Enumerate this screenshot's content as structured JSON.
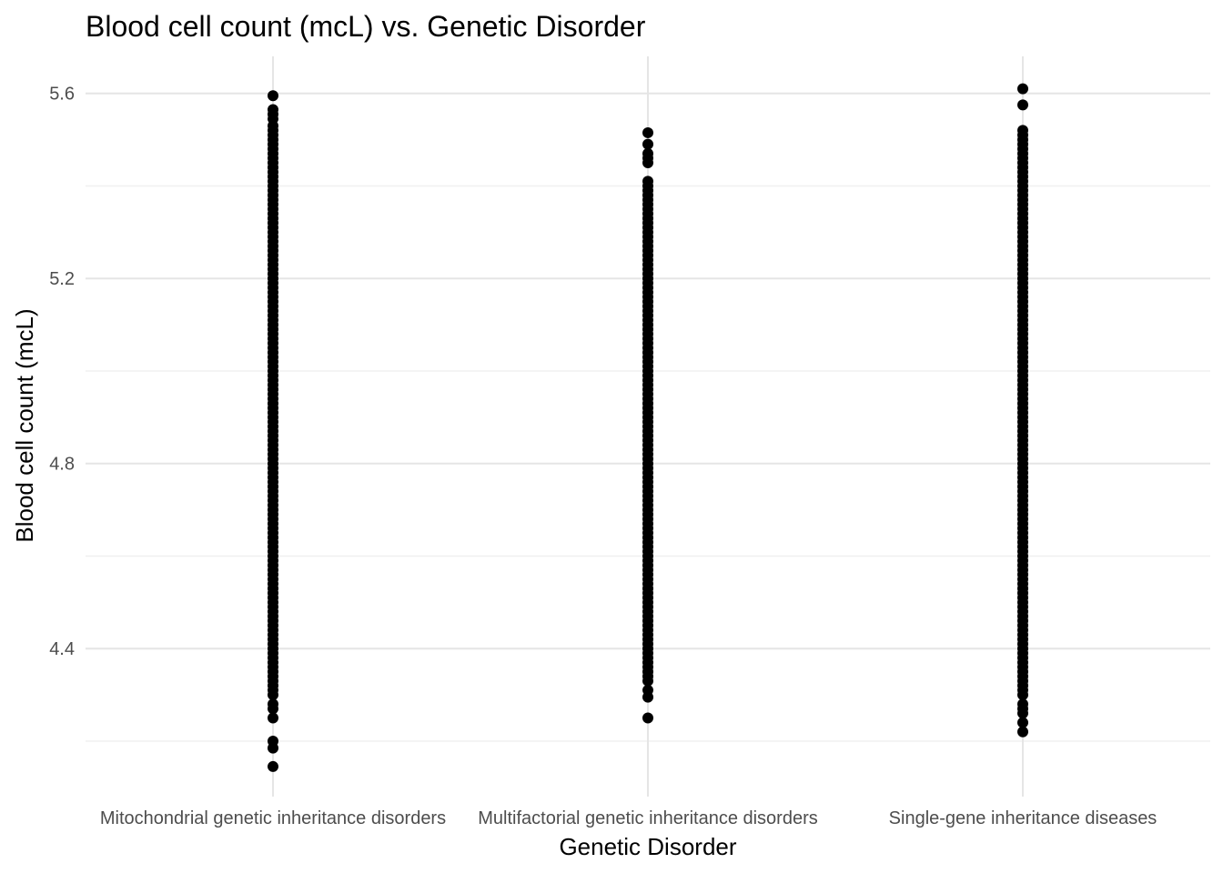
{
  "chart_data": {
    "type": "scatter",
    "title": "Blood cell count (mcL) vs. Genetic Disorder",
    "xlabel": "Genetic Disorder",
    "ylabel": "Blood cell count (mcL)",
    "ylim": [
      4.08,
      5.68
    ],
    "yticks": [
      4.4,
      4.8,
      5.2,
      5.6
    ],
    "ytick_labels": [
      "4.4",
      "4.8",
      "5.2",
      "5.6"
    ],
    "grid": true,
    "categories": [
      "Mitochondrial genetic inheritance disorders",
      "Multifactorial genetic inheritance disorders",
      "Single-gene inheritance diseases"
    ],
    "series": [
      {
        "category": "Mitochondrial genetic inheritance disorders",
        "values": [
          5.595,
          5.565,
          5.555,
          5.545,
          5.53,
          5.52,
          5.51,
          5.5,
          5.49,
          5.48,
          5.47,
          5.46,
          5.45,
          5.44,
          5.43,
          5.42,
          5.41,
          5.4,
          5.39,
          5.38,
          5.37,
          5.36,
          5.35,
          5.34,
          5.33,
          5.32,
          5.31,
          5.3,
          5.29,
          5.28,
          5.27,
          5.26,
          5.25,
          5.24,
          5.23,
          5.22,
          5.21,
          5.2,
          5.19,
          5.18,
          5.17,
          5.16,
          5.15,
          5.14,
          5.13,
          5.12,
          5.11,
          5.1,
          5.09,
          5.08,
          5.07,
          5.06,
          5.05,
          5.04,
          5.03,
          5.02,
          5.01,
          5.0,
          4.99,
          4.98,
          4.97,
          4.96,
          4.95,
          4.94,
          4.93,
          4.92,
          4.91,
          4.9,
          4.89,
          4.88,
          4.87,
          4.86,
          4.85,
          4.84,
          4.83,
          4.82,
          4.81,
          4.8,
          4.79,
          4.78,
          4.77,
          4.76,
          4.75,
          4.74,
          4.73,
          4.72,
          4.71,
          4.7,
          4.69,
          4.68,
          4.67,
          4.66,
          4.65,
          4.64,
          4.63,
          4.62,
          4.61,
          4.6,
          4.59,
          4.58,
          4.57,
          4.56,
          4.55,
          4.54,
          4.53,
          4.52,
          4.51,
          4.5,
          4.49,
          4.48,
          4.47,
          4.46,
          4.45,
          4.44,
          4.43,
          4.42,
          4.41,
          4.4,
          4.39,
          4.38,
          4.37,
          4.36,
          4.35,
          4.34,
          4.33,
          4.32,
          4.31,
          4.3,
          4.28,
          4.27,
          4.25,
          4.2,
          4.185,
          4.145
        ]
      },
      {
        "category": "Multifactorial genetic inheritance disorders",
        "values": [
          5.515,
          5.49,
          5.47,
          5.46,
          5.45,
          5.41,
          5.4,
          5.39,
          5.38,
          5.37,
          5.36,
          5.35,
          5.34,
          5.33,
          5.32,
          5.31,
          5.3,
          5.29,
          5.28,
          5.27,
          5.26,
          5.25,
          5.24,
          5.23,
          5.22,
          5.21,
          5.2,
          5.19,
          5.18,
          5.17,
          5.16,
          5.15,
          5.14,
          5.13,
          5.12,
          5.11,
          5.1,
          5.09,
          5.08,
          5.07,
          5.06,
          5.05,
          5.04,
          5.03,
          5.02,
          5.01,
          5.0,
          4.99,
          4.98,
          4.97,
          4.96,
          4.95,
          4.94,
          4.93,
          4.92,
          4.91,
          4.9,
          4.89,
          4.88,
          4.87,
          4.86,
          4.85,
          4.84,
          4.83,
          4.82,
          4.81,
          4.8,
          4.79,
          4.78,
          4.77,
          4.76,
          4.75,
          4.74,
          4.73,
          4.72,
          4.71,
          4.7,
          4.69,
          4.68,
          4.67,
          4.66,
          4.65,
          4.64,
          4.63,
          4.62,
          4.61,
          4.6,
          4.59,
          4.58,
          4.57,
          4.56,
          4.55,
          4.54,
          4.53,
          4.52,
          4.51,
          4.5,
          4.49,
          4.48,
          4.47,
          4.46,
          4.45,
          4.44,
          4.43,
          4.42,
          4.41,
          4.4,
          4.39,
          4.38,
          4.37,
          4.36,
          4.35,
          4.34,
          4.33,
          4.31,
          4.295,
          4.25
        ]
      },
      {
        "category": "Single-gene inheritance diseases",
        "values": [
          5.61,
          5.575,
          5.52,
          5.51,
          5.5,
          5.49,
          5.48,
          5.47,
          5.46,
          5.45,
          5.44,
          5.43,
          5.42,
          5.41,
          5.4,
          5.39,
          5.38,
          5.37,
          5.36,
          5.35,
          5.34,
          5.33,
          5.32,
          5.31,
          5.3,
          5.29,
          5.28,
          5.27,
          5.26,
          5.25,
          5.24,
          5.23,
          5.22,
          5.21,
          5.2,
          5.19,
          5.18,
          5.17,
          5.16,
          5.15,
          5.14,
          5.13,
          5.12,
          5.11,
          5.1,
          5.09,
          5.08,
          5.07,
          5.06,
          5.05,
          5.04,
          5.03,
          5.02,
          5.01,
          5.0,
          4.99,
          4.98,
          4.97,
          4.96,
          4.95,
          4.94,
          4.93,
          4.92,
          4.91,
          4.9,
          4.89,
          4.88,
          4.87,
          4.86,
          4.85,
          4.84,
          4.83,
          4.82,
          4.81,
          4.8,
          4.79,
          4.78,
          4.77,
          4.76,
          4.75,
          4.74,
          4.73,
          4.72,
          4.71,
          4.7,
          4.69,
          4.68,
          4.67,
          4.66,
          4.65,
          4.64,
          4.63,
          4.62,
          4.61,
          4.6,
          4.59,
          4.58,
          4.57,
          4.56,
          4.55,
          4.54,
          4.53,
          4.52,
          4.51,
          4.5,
          4.49,
          4.48,
          4.47,
          4.46,
          4.45,
          4.44,
          4.43,
          4.42,
          4.41,
          4.4,
          4.39,
          4.38,
          4.37,
          4.36,
          4.35,
          4.34,
          4.33,
          4.32,
          4.31,
          4.3,
          4.28,
          4.27,
          4.26,
          4.24,
          4.22
        ]
      }
    ],
    "colors": {
      "point": "#000000",
      "grid": "#e5e5e5",
      "tick_text": "#4d4d4d"
    }
  }
}
